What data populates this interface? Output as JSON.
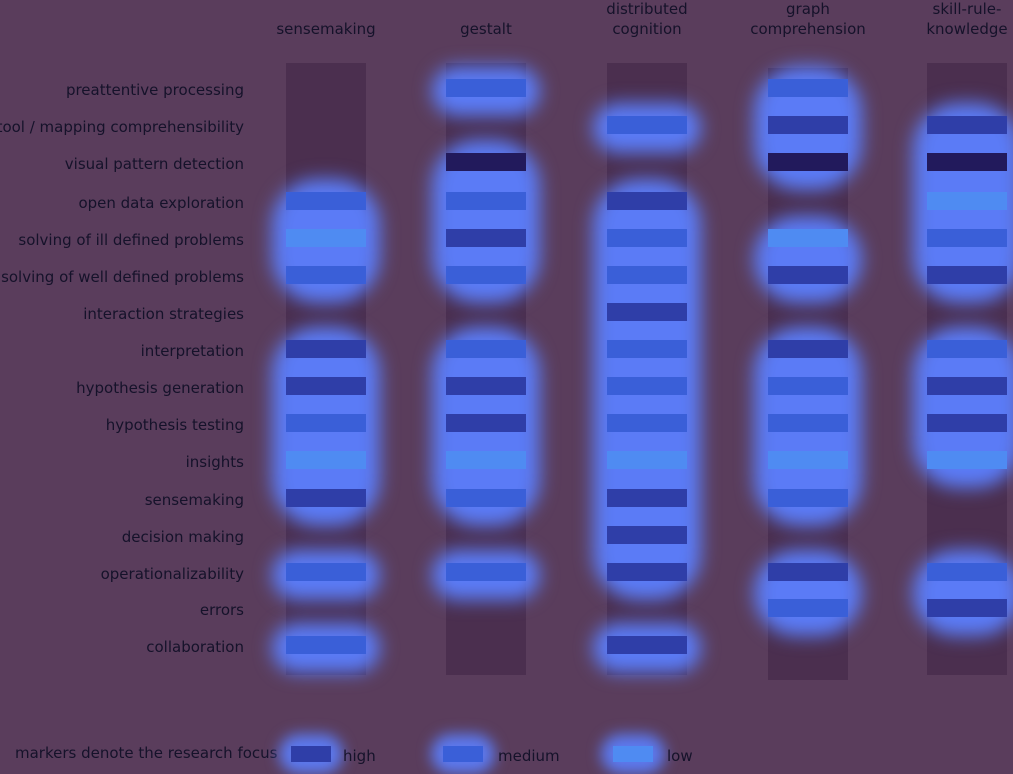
{
  "columns": [
    {
      "id": "sensemaking",
      "label": "sensemaking"
    },
    {
      "id": "gestalt",
      "label": "gestalt"
    },
    {
      "id": "distributed-cognition",
      "label": "distributed cognition"
    },
    {
      "id": "graph-comprehension",
      "label": "graph comprehension"
    },
    {
      "id": "skill-rule-knowledge",
      "label": "skill-rule-knowledge"
    }
  ],
  "rows": [
    "preattentive processing",
    "tool / mapping comprehensibility",
    "visual pattern detection",
    "open data exploration",
    "solving of ill defined problems",
    "solving of well defined problems",
    "interaction strategies",
    "interpretation",
    "hypothesis generation",
    "hypothesis testing",
    "insights",
    "sensemaking",
    "decision making",
    "operationalizability",
    "errors",
    "collaboration"
  ],
  "focus_levels": {
    "high": "#2f3ea8",
    "medium": "#3a5fd8",
    "low": "#4f8bf2",
    "very_high": "#221a5c"
  },
  "markers": {
    "sensemaking": {
      "open data exploration": "medium",
      "solving of ill defined problems": "low",
      "solving of well defined problems": "medium",
      "interpretation": "high",
      "hypothesis generation": "high",
      "hypothesis testing": "medium",
      "insights": "low",
      "sensemaking": "high",
      "operationalizability": "medium",
      "collaboration": "medium"
    },
    "gestalt": {
      "preattentive processing": "medium",
      "visual pattern detection": "very_high",
      "open data exploration": "medium",
      "solving of ill defined problems": "high",
      "solving of well defined problems": "medium",
      "interpretation": "medium",
      "hypothesis generation": "high",
      "hypothesis testing": "high",
      "insights": "low",
      "sensemaking": "medium",
      "operationalizability": "medium"
    },
    "distributed-cognition": {
      "tool / mapping comprehensibility": "medium",
      "open data exploration": "high",
      "solving of ill defined problems": "medium",
      "solving of well defined problems": "medium",
      "interaction strategies": "high",
      "interpretation": "medium",
      "hypothesis generation": "medium",
      "hypothesis testing": "medium",
      "insights": "low",
      "sensemaking": "high",
      "decision making": "high",
      "operationalizability": "high",
      "collaboration": "high"
    },
    "graph-comprehension": {
      "preattentive processing": "medium",
      "tool / mapping comprehensibility": "high",
      "visual pattern detection": "very_high",
      "solving of ill defined problems": "low",
      "solving of well defined problems": "high",
      "interpretation": "high",
      "hypothesis generation": "medium",
      "hypothesis testing": "medium",
      "insights": "low",
      "sensemaking": "medium",
      "operationalizability": "high",
      "errors": "medium"
    },
    "skill-rule-knowledge": {
      "tool / mapping comprehensibility": "high",
      "visual pattern detection": "very_high",
      "open data exploration": "low",
      "solving of ill defined problems": "medium",
      "solving of well defined problems": "high",
      "interpretation": "medium",
      "hypothesis generation": "high",
      "hypothesis testing": "high",
      "insights": "low",
      "operationalizability": "medium",
      "errors": "high"
    }
  },
  "legend": {
    "caption": "markers  denote the research focus",
    "items": [
      {
        "level": "high",
        "label": "high"
      },
      {
        "level": "medium",
        "label": "medium"
      },
      {
        "level": "low",
        "label": "low"
      }
    ]
  }
}
